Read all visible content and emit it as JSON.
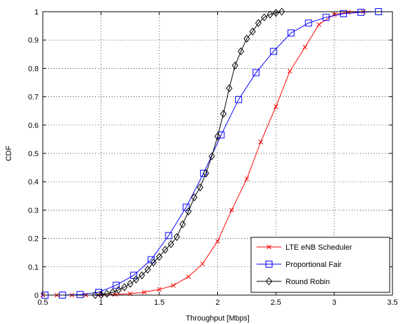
{
  "chart_data": {
    "type": "line",
    "title": "",
    "xlabel": "Throughput [Mbps]",
    "ylabel": "CDF",
    "xlim": [
      0.5,
      3.5
    ],
    "ylim": [
      0,
      1
    ],
    "xticks": [
      "0.5",
      "1",
      "1.5",
      "2",
      "2.5",
      "3",
      "3.5"
    ],
    "yticks": [
      "0",
      "0.1",
      "0.2",
      "0.3",
      "0.4",
      "0.5",
      "0.6",
      "0.7",
      "0.8",
      "0.9",
      "1"
    ],
    "grid": true,
    "legend_position": "bottom-right",
    "series": [
      {
        "name": "LTE eNB Scheduler",
        "color": "#ff0000",
        "marker": "x",
        "points": [
          [
            0.5,
            0
          ],
          [
            0.62,
            0
          ],
          [
            0.75,
            0
          ],
          [
            0.87,
            0
          ],
          [
            1.0,
            0.001
          ],
          [
            1.12,
            0.002
          ],
          [
            1.25,
            0.005
          ],
          [
            1.37,
            0.01
          ],
          [
            1.5,
            0.02
          ],
          [
            1.62,
            0.034
          ],
          [
            1.75,
            0.065
          ],
          [
            1.87,
            0.11
          ],
          [
            2.0,
            0.19
          ],
          [
            2.12,
            0.3
          ],
          [
            2.25,
            0.41
          ],
          [
            2.37,
            0.54
          ],
          [
            2.5,
            0.665
          ],
          [
            2.62,
            0.79
          ],
          [
            2.75,
            0.875
          ],
          [
            2.87,
            0.955
          ],
          [
            3.0,
            0.99
          ],
          [
            3.12,
            0.998
          ],
          [
            3.25,
            1.0
          ]
        ]
      },
      {
        "name": "Proportional Fair",
        "color": "#0000ff",
        "marker": "square",
        "points": [
          [
            0.52,
            0
          ],
          [
            0.67,
            0
          ],
          [
            0.82,
            0.002
          ],
          [
            0.98,
            0.01
          ],
          [
            1.13,
            0.035
          ],
          [
            1.28,
            0.07
          ],
          [
            1.43,
            0.125
          ],
          [
            1.58,
            0.21
          ],
          [
            1.73,
            0.31
          ],
          [
            1.88,
            0.43
          ],
          [
            2.03,
            0.565
          ],
          [
            2.18,
            0.69
          ],
          [
            2.33,
            0.785
          ],
          [
            2.48,
            0.86
          ],
          [
            2.63,
            0.925
          ],
          [
            2.78,
            0.96
          ],
          [
            2.93,
            0.98
          ],
          [
            3.08,
            0.993
          ],
          [
            3.23,
            0.998
          ],
          [
            3.38,
            1.0
          ]
        ]
      },
      {
        "name": "Round Robin",
        "color": "#000000",
        "marker": "diamond",
        "points": [
          [
            0.95,
            0
          ],
          [
            1.0,
            0.001
          ],
          [
            1.05,
            0.005
          ],
          [
            1.1,
            0.01
          ],
          [
            1.15,
            0.018
          ],
          [
            1.2,
            0.028
          ],
          [
            1.25,
            0.04
          ],
          [
            1.3,
            0.055
          ],
          [
            1.35,
            0.07
          ],
          [
            1.4,
            0.09
          ],
          [
            1.45,
            0.115
          ],
          [
            1.5,
            0.135
          ],
          [
            1.55,
            0.16
          ],
          [
            1.6,
            0.18
          ],
          [
            1.65,
            0.205
          ],
          [
            1.7,
            0.25
          ],
          [
            1.75,
            0.295
          ],
          [
            1.8,
            0.345
          ],
          [
            1.85,
            0.38
          ],
          [
            1.9,
            0.43
          ],
          [
            1.95,
            0.49
          ],
          [
            2.0,
            0.56
          ],
          [
            2.05,
            0.64
          ],
          [
            2.1,
            0.73
          ],
          [
            2.15,
            0.81
          ],
          [
            2.2,
            0.86
          ],
          [
            2.25,
            0.905
          ],
          [
            2.3,
            0.93
          ],
          [
            2.35,
            0.96
          ],
          [
            2.4,
            0.98
          ],
          [
            2.45,
            0.99
          ],
          [
            2.5,
            0.996
          ],
          [
            2.55,
            1.0
          ]
        ]
      }
    ]
  }
}
